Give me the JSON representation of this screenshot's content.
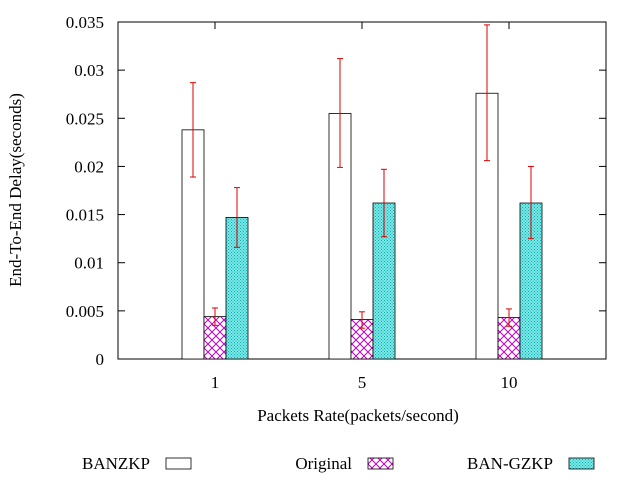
{
  "chart_data": {
    "type": "bar",
    "title": "",
    "xlabel": "Packets Rate(packets/second)",
    "ylabel": "End-To-End Delay(seconds)",
    "ylim": [
      0,
      0.035
    ],
    "yticks": [
      "0",
      "0.005",
      "0.01",
      "0.015",
      "0.02",
      "0.025",
      "0.03",
      "0.035"
    ],
    "categories": [
      "1",
      "5",
      "10"
    ],
    "legend_position": "bottom",
    "series": [
      {
        "name": "BANZKP",
        "pattern": "solid-white",
        "values": [
          0.0238,
          0.0255,
          0.0276
        ],
        "err_low": [
          0.0189,
          0.0199,
          0.0206
        ],
        "err_high": [
          0.0287,
          0.0312,
          0.0347
        ]
      },
      {
        "name": "Original",
        "pattern": "crosshatch",
        "color": "#c000c0",
        "values": [
          0.0044,
          0.0041,
          0.0043
        ],
        "err_low": [
          0.0035,
          0.0032,
          0.0034
        ],
        "err_high": [
          0.0053,
          0.0049,
          0.0052
        ]
      },
      {
        "name": "BAN-GZKP",
        "pattern": "dots",
        "color": "#00c8c8",
        "values": [
          0.0147,
          0.0162,
          0.0162
        ],
        "err_low": [
          0.0116,
          0.0127,
          0.0125
        ],
        "err_high": [
          0.0178,
          0.0197,
          0.02
        ]
      }
    ]
  },
  "colors": {
    "error_bar": "#e00000",
    "axis": "#000000"
  }
}
